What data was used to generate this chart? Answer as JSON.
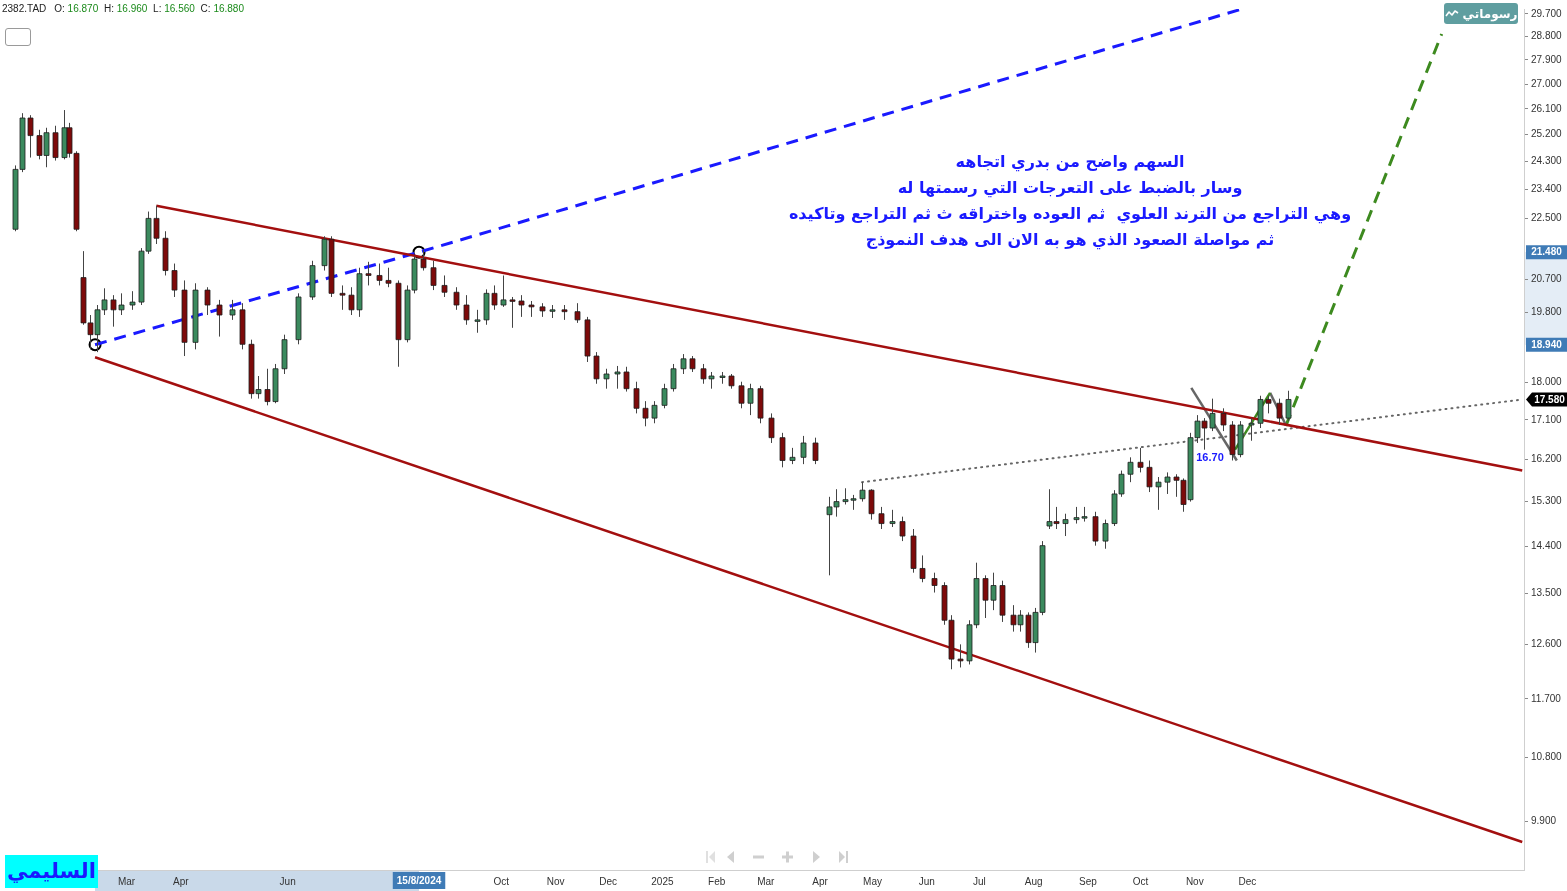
{
  "chart_data": {
    "type": "candlestick",
    "title": "2382.TAD",
    "subtitle": "O: 16.870 H: 16.960 L: 16.560 C: 16.880",
    "log": true,
    "xlim": [
      "2023-12-24",
      "2026-05-08"
    ],
    "xticks": [
      {
        "value": "2024-03-01",
        "label": "Mar"
      },
      {
        "value": "2024-04-01",
        "label": "Apr"
      },
      {
        "value": "2024-06-01",
        "label": "Jun"
      },
      {
        "value": "2024-10-01",
        "label": "Oct"
      },
      {
        "value": "2024-11-01",
        "label": "Nov"
      },
      {
        "value": "2024-12-01",
        "label": "Dec"
      },
      {
        "value": "2025-01-01",
        "label": "2025"
      },
      {
        "value": "2025-02-01",
        "label": "Feb"
      },
      {
        "value": "2025-03-01",
        "label": "Mar"
      },
      {
        "value": "2025-04-01",
        "label": "Apr"
      },
      {
        "value": "2025-05-01",
        "label": "May"
      },
      {
        "value": "2025-06-01",
        "label": "Jun"
      },
      {
        "value": "2025-07-01",
        "label": "Jul"
      },
      {
        "value": "2025-08-01",
        "label": "Aug"
      },
      {
        "value": "2025-09-01",
        "label": "Sep"
      },
      {
        "value": "2025-10-01",
        "label": "Oct"
      },
      {
        "value": "2025-11-01",
        "label": "Nov"
      },
      {
        "value": "2025-12-01",
        "label": "Dec"
      }
    ],
    "ylim": [
      9.27,
      29.9
    ],
    "yticks": [
      {
        "value": 9.9,
        "label": "9.900"
      },
      {
        "value": 10.8,
        "label": "10.800"
      },
      {
        "value": 11.7,
        "label": "11.700"
      },
      {
        "value": 12.6,
        "label": "12.600"
      },
      {
        "value": 13.5,
        "label": "13.500"
      },
      {
        "value": 14.4,
        "label": "14.400"
      },
      {
        "value": 15.3,
        "label": "15.300"
      },
      {
        "value": 16.2,
        "label": "16.200"
      },
      {
        "value": 17.1,
        "label": "17.100"
      },
      {
        "value": 18.0,
        "label": "18.000"
      },
      {
        "value": 19.8,
        "label": "19.800"
      },
      {
        "value": 20.7,
        "label": "20.700"
      },
      {
        "value": 22.5,
        "label": "22.500"
      },
      {
        "value": 23.4,
        "label": "23.400"
      },
      {
        "value": 24.3,
        "label": "24.300"
      },
      {
        "value": 25.2,
        "label": "25.200"
      },
      {
        "value": 26.1,
        "label": "26.100"
      },
      {
        "value": 27.0,
        "label": "27.000"
      },
      {
        "value": 27.9,
        "label": "27.900"
      },
      {
        "value": 28.8,
        "label": "28.800"
      },
      {
        "value": 29.7,
        "label": "29.700"
      }
    ],
    "x": [
      "2023-12-28",
      "2024-01-01",
      "2024-01-06",
      "2024-01-11",
      "2024-01-15",
      "2024-01-20",
      "2024-01-25",
      "2024-01-28",
      "2024-02-01",
      "2024-02-05",
      "2024-02-09",
      "2024-02-13",
      "2024-02-17",
      "2024-02-22",
      "2024-02-27",
      "2024-03-04",
      "2024-03-09",
      "2024-03-13",
      "2024-03-18",
      "2024-03-23",
      "2024-03-28",
      "2024-04-03",
      "2024-04-09",
      "2024-04-16",
      "2024-04-23",
      "2024-04-30",
      "2024-05-06",
      "2024-05-11",
      "2024-05-15",
      "2024-05-20",
      "2024-05-25",
      "2024-05-30",
      "2024-06-07",
      "2024-06-15",
      "2024-06-22",
      "2024-06-26",
      "2024-07-02",
      "2024-07-07",
      "2024-07-12",
      "2024-07-17",
      "2024-07-23",
      "2024-07-28",
      "2024-08-03",
      "2024-08-08",
      "2024-08-12",
      "2024-08-17",
      "2024-08-23",
      "2024-08-29",
      "2024-09-05",
      "2024-09-11",
      "2024-09-17",
      "2024-09-22",
      "2024-09-27",
      "2024-10-02",
      "2024-10-07",
      "2024-10-12",
      "2024-10-18",
      "2024-10-24",
      "2024-10-30",
      "2024-11-06",
      "2024-11-13",
      "2024-11-19",
      "2024-11-24",
      "2024-11-30",
      "2024-12-06",
      "2024-12-11",
      "2024-12-17",
      "2024-12-22",
      "2024-12-27",
      "2025-01-02",
      "2025-01-07",
      "2025-01-13",
      "2025-01-18",
      "2025-01-24",
      "2025-01-29",
      "2025-02-04",
      "2025-02-09",
      "2025-02-15",
      "2025-02-20",
      "2025-02-26",
      "2025-03-04",
      "2025-03-10",
      "2025-03-16",
      "2025-03-22",
      "2025-03-29",
      "2025-04-06",
      "2025-04-10",
      "2025-04-15",
      "2025-04-20",
      "2025-04-25",
      "2025-04-30",
      "2025-05-06",
      "2025-05-12",
      "2025-05-18",
      "2025-05-24",
      "2025-05-29",
      "2025-06-05",
      "2025-06-11",
      "2025-06-15",
      "2025-06-20",
      "2025-06-25",
      "2025-06-29",
      "2025-07-04",
      "2025-07-09",
      "2025-07-14",
      "2025-07-20",
      "2025-07-24",
      "2025-07-29",
      "2025-08-02",
      "2025-08-06",
      "2025-08-10",
      "2025-08-14",
      "2025-08-19",
      "2025-08-25",
      "2025-08-30",
      "2025-09-05",
      "2025-09-11",
      "2025-09-16",
      "2025-09-20",
      "2025-09-25",
      "2025-10-01",
      "2025-10-06",
      "2025-10-11",
      "2025-10-16",
      "2025-10-21",
      "2025-10-25",
      "2025-10-29",
      "2025-11-02",
      "2025-11-06",
      "2025-11-11",
      "2025-11-17",
      "2025-11-22",
      "2025-11-27",
      "2025-12-03",
      "2025-12-08",
      "2025-12-13",
      "2025-12-19",
      "2025-12-24"
    ],
    "ohlc": [
      [
        22.16,
        24.17,
        22.1,
        24.04
      ],
      [
        24.04,
        25.95,
        23.95,
        25.78
      ],
      [
        25.78,
        25.88,
        24.43,
        25.17
      ],
      [
        25.17,
        25.37,
        24.37,
        24.5
      ],
      [
        24.5,
        25.44,
        24.11,
        25.27
      ],
      [
        25.27,
        25.51,
        24.33,
        24.43
      ],
      [
        24.43,
        26.06,
        24.37,
        25.44
      ],
      [
        25.44,
        25.61,
        24.43,
        24.57
      ],
      [
        24.57,
        24.64,
        22.1,
        22.16
      ],
      [
        20.75,
        21.51,
        19.46,
        19.51
      ],
      [
        19.51,
        19.72,
        18.82,
        19.2
      ],
      [
        19.2,
        19.99,
        18.75,
        19.86
      ],
      [
        19.86,
        20.45,
        19.72,
        20.13
      ],
      [
        20.13,
        20.26,
        19.41,
        19.86
      ],
      [
        19.86,
        20.31,
        19.72,
        19.99
      ],
      [
        19.99,
        20.37,
        19.86,
        20.07
      ],
      [
        20.07,
        21.6,
        19.99,
        21.51
      ],
      [
        21.51,
        22.7,
        21.43,
        22.49
      ],
      [
        22.49,
        22.88,
        21.72,
        21.89
      ],
      [
        21.89,
        22.1,
        20.81,
        20.95
      ],
      [
        20.95,
        21.15,
        20.21,
        20.4
      ],
      [
        20.4,
        20.67,
        18.65,
        19.0
      ],
      [
        19.0,
        20.59,
        18.82,
        20.4
      ],
      [
        20.4,
        20.48,
        19.72,
        19.99
      ],
      [
        19.99,
        20.13,
        19.15,
        19.72
      ],
      [
        19.72,
        20.13,
        19.59,
        19.86
      ],
      [
        19.86,
        20.04,
        18.82,
        18.95
      ],
      [
        18.95,
        19.07,
        17.6,
        17.72
      ],
      [
        17.72,
        18.15,
        17.6,
        17.82
      ],
      [
        17.82,
        18.33,
        17.44,
        17.53
      ],
      [
        17.53,
        18.45,
        17.49,
        18.33
      ],
      [
        18.33,
        19.2,
        18.2,
        19.07
      ],
      [
        19.07,
        20.31,
        18.95,
        20.21
      ],
      [
        20.21,
        21.23,
        20.13,
        21.09
      ],
      [
        21.09,
        21.95,
        20.95,
        21.86
      ],
      [
        21.86,
        21.95,
        20.21,
        20.31
      ],
      [
        20.31,
        20.53,
        19.86,
        20.26
      ],
      [
        20.26,
        20.48,
        19.72,
        19.86
      ],
      [
        19.86,
        21.03,
        19.67,
        20.86
      ],
      [
        20.86,
        21.2,
        20.53,
        20.81
      ],
      [
        20.81,
        21.15,
        20.53,
        20.67
      ],
      [
        20.67,
        21.03,
        20.48,
        20.59
      ],
      [
        20.59,
        20.67,
        18.38,
        19.07
      ],
      [
        19.07,
        20.53,
        19.0,
        20.4
      ],
      [
        20.4,
        21.37,
        20.31,
        21.28
      ],
      [
        21.28,
        21.54,
        20.95,
        21.03
      ],
      [
        21.03,
        21.23,
        20.4,
        20.53
      ],
      [
        20.53,
        20.81,
        20.21,
        20.34
      ],
      [
        20.34,
        20.48,
        19.86,
        19.99
      ],
      [
        19.99,
        20.26,
        19.46,
        19.59
      ],
      [
        19.59,
        19.86,
        19.25,
        19.59
      ],
      [
        19.59,
        20.42,
        19.46,
        20.31
      ],
      [
        20.31,
        20.53,
        19.86,
        19.99
      ],
      [
        19.99,
        20.81,
        19.94,
        20.13
      ],
      [
        20.13,
        20.21,
        19.38,
        20.1
      ],
      [
        20.1,
        20.26,
        19.67,
        19.99
      ],
      [
        19.99,
        20.1,
        19.67,
        19.94
      ],
      [
        19.94,
        20.04,
        19.67,
        19.83
      ],
      [
        19.83,
        19.99,
        19.64,
        19.86
      ],
      [
        19.86,
        19.99,
        19.59,
        19.81
      ],
      [
        19.81,
        20.04,
        19.51,
        19.59
      ],
      [
        19.59,
        19.67,
        18.5,
        18.65
      ],
      [
        18.65,
        18.75,
        17.96,
        18.08
      ],
      [
        18.08,
        18.33,
        17.84,
        18.2
      ],
      [
        18.2,
        18.4,
        17.84,
        18.25
      ],
      [
        18.25,
        18.38,
        17.77,
        17.84
      ],
      [
        17.84,
        18.01,
        17.25,
        17.37
      ],
      [
        17.37,
        17.54,
        16.95,
        17.14
      ],
      [
        17.14,
        17.54,
        17.02,
        17.44
      ],
      [
        17.44,
        17.96,
        17.37,
        17.84
      ],
      [
        17.84,
        18.45,
        17.77,
        18.33
      ],
      [
        18.33,
        18.7,
        18.2,
        18.58
      ],
      [
        18.58,
        18.65,
        18.25,
        18.33
      ],
      [
        18.33,
        18.45,
        17.96,
        18.08
      ],
      [
        18.08,
        18.25,
        17.84,
        18.15
      ],
      [
        18.15,
        18.25,
        17.96,
        18.15
      ],
      [
        18.15,
        18.2,
        17.84,
        17.91
      ],
      [
        17.91,
        18.01,
        17.37,
        17.49
      ],
      [
        17.49,
        17.96,
        17.21,
        17.84
      ],
      [
        17.84,
        17.91,
        17.02,
        17.14
      ],
      [
        17.14,
        17.25,
        16.57,
        16.69
      ],
      [
        16.69,
        16.8,
        16.03,
        16.18
      ],
      [
        16.18,
        16.46,
        16.1,
        16.25
      ],
      [
        16.25,
        16.73,
        16.1,
        16.57
      ],
      [
        16.57,
        16.69,
        16.1,
        16.18
      ],
      [
        15.03,
        15.4,
        13.84,
        15.19
      ],
      [
        15.19,
        15.56,
        14.99,
        15.3
      ],
      [
        15.3,
        15.58,
        15.24,
        15.34
      ],
      [
        15.34,
        15.44,
        15.13,
        15.36
      ],
      [
        15.36,
        15.71,
        15.3,
        15.54
      ],
      [
        15.54,
        15.56,
        14.93,
        15.05
      ],
      [
        15.05,
        15.19,
        14.74,
        14.85
      ],
      [
        14.85,
        15.13,
        14.78,
        14.89
      ],
      [
        14.89,
        14.99,
        14.5,
        14.6
      ],
      [
        14.6,
        14.74,
        13.89,
        13.97
      ],
      [
        13.97,
        14.22,
        13.71,
        13.78
      ],
      [
        13.78,
        13.89,
        13.52,
        13.65
      ],
      [
        13.65,
        13.71,
        12.94,
        13.02
      ],
      [
        13.02,
        13.11,
        12.18,
        12.35
      ],
      [
        12.35,
        12.6,
        12.21,
        12.32
      ],
      [
        12.32,
        13.02,
        12.26,
        12.94
      ],
      [
        12.94,
        14.08,
        12.88,
        13.78
      ],
      [
        13.78,
        13.84,
        13.06,
        13.38
      ],
      [
        13.38,
        13.89,
        13.2,
        13.65
      ],
      [
        13.65,
        13.74,
        12.99,
        13.11
      ],
      [
        13.11,
        13.29,
        12.82,
        12.94
      ],
      [
        12.94,
        13.2,
        12.82,
        13.11
      ],
      [
        13.11,
        13.16,
        12.54,
        12.63
      ],
      [
        12.63,
        13.24,
        12.46,
        13.16
      ],
      [
        13.16,
        14.5,
        13.11,
        14.41
      ],
      [
        14.8,
        15.56,
        14.74,
        14.89
      ],
      [
        14.89,
        15.19,
        14.74,
        14.85
      ],
      [
        14.85,
        15.05,
        14.6,
        14.93
      ],
      [
        14.93,
        15.19,
        14.85,
        14.97
      ],
      [
        14.97,
        15.19,
        14.89,
        14.99
      ],
      [
        14.99,
        15.09,
        14.41,
        14.5
      ],
      [
        14.5,
        14.93,
        14.35,
        14.85
      ],
      [
        14.85,
        15.54,
        14.8,
        15.46
      ],
      [
        15.46,
        15.96,
        15.4,
        15.88
      ],
      [
        15.88,
        16.25,
        15.71,
        16.14
      ],
      [
        16.14,
        16.46,
        15.92,
        16.03
      ],
      [
        16.03,
        16.18,
        15.5,
        15.61
      ],
      [
        15.61,
        15.82,
        15.13,
        15.71
      ],
      [
        15.71,
        15.92,
        15.46,
        15.82
      ],
      [
        15.82,
        15.88,
        15.4,
        15.75
      ],
      [
        15.75,
        15.79,
        15.09,
        15.24
      ],
      [
        15.34,
        16.8,
        15.3,
        16.69
      ],
      [
        16.69,
        17.21,
        16.57,
        17.07
      ],
      [
        17.07,
        17.14,
        16.42,
        16.91
      ],
      [
        16.91,
        17.6,
        16.84,
        17.25
      ],
      [
        17.25,
        17.37,
        16.84,
        16.98
      ],
      [
        16.98,
        17.07,
        16.18,
        16.31
      ],
      [
        16.31,
        17.07,
        16.25,
        16.98
      ],
      [
        16.98,
        17.14,
        16.62,
        17.02
      ],
      [
        17.02,
        17.67,
        16.91,
        17.58
      ],
      [
        17.58,
        17.67,
        17.25,
        17.49
      ],
      [
        17.49,
        17.6,
        16.98,
        17.14
      ],
      [
        17.14,
        17.79,
        17.07,
        17.58
      ]
    ],
    "series": [
      {
        "type": "line",
        "x": [
          "2024-03-18",
          "2026-05-07"
        ],
        "values": [
          22.88,
          15.96
        ],
        "color": "#a30f0f",
        "line_style": "solid"
      },
      {
        "type": "line",
        "x": [
          "2024-02-12",
          "2026-05-07"
        ],
        "values": [
          18.62,
          9.63
        ],
        "color": "#a30f0f",
        "line_style": "solid"
      },
      {
        "type": "line",
        "x": [
          "2024-02-12",
          "2024-08-15",
          "2025-11-28"
        ],
        "values": [
          18.94,
          21.48,
          29.9
        ],
        "color": "#1a1aff",
        "line_style": "dashed"
      },
      {
        "type": "line",
        "x": [
          "2025-04-25",
          "2026-05-07"
        ],
        "values": [
          15.71,
          17.58
        ],
        "color": "#666666",
        "line_style": "dotted"
      },
      {
        "type": "line",
        "x": [
          "2025-10-30",
          "2025-11-25"
        ],
        "values": [
          17.86,
          16.18
        ],
        "color": "#666666",
        "line_style": "solid"
      },
      {
        "type": "line",
        "x": [
          "2025-11-24",
          "2025-12-14"
        ],
        "values": [
          16.42,
          17.74
        ],
        "color": "#3d8a1f",
        "line_style": "solid"
      },
      {
        "type": "line",
        "x": [
          "2025-12-14",
          "2025-12-23"
        ],
        "values": [
          17.74,
          16.98
        ],
        "color": "#666666",
        "line_style": "solid"
      },
      {
        "type": "line",
        "x": [
          "2025-12-23",
          "2026-03-22"
        ],
        "values": [
          16.96,
          28.9
        ],
        "color": "#3d8a1f",
        "line_style": "dashed"
      },
      {
        "type": "scatter",
        "x": [
          "2024-02-12",
          "2024-08-15"
        ],
        "values": [
          18.94,
          21.48
        ],
        "color": "#000000",
        "marker": "circle"
      }
    ],
    "annotations": [
      "السهم واضح من بدري اتجاهه\nوسار بالضبط على التعرجات التي رسمتها له\nوهي التراجع من الترند العلوي  ثم العوده واختراقه ث ثم التراجع وتاكيده\nثم مواصلة الصعود الذي هو به الان الى هدف النموذج",
      "16.70",
      "17.580",
      "15/8/2024",
      "رسوماتي",
      "السليمي",
      {
        "text": "21.480",
        "y": 21.48
      },
      {
        "text": "18.940",
        "y": 18.94
      }
    ]
  }
}
